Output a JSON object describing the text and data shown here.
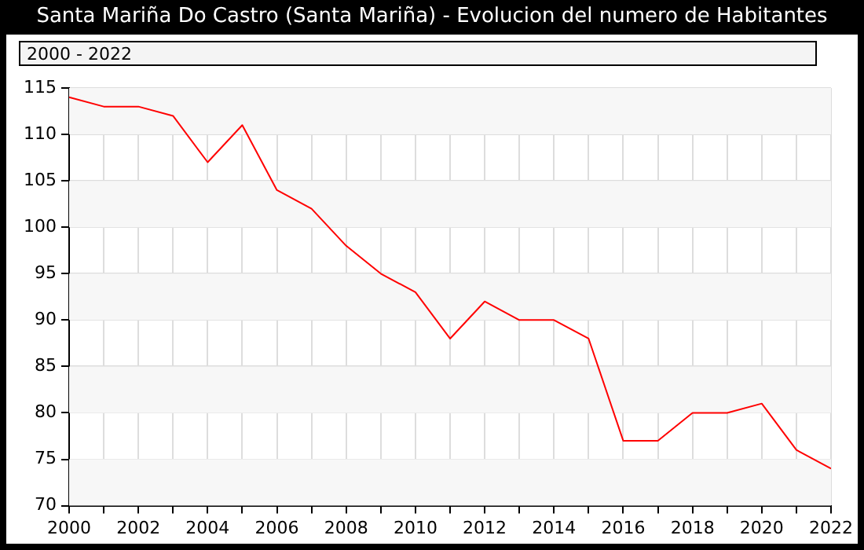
{
  "chart_data": {
    "type": "line",
    "title": "Santa Mariña Do Castro (Santa Mariña) - Evolucion del numero de Habitantes",
    "subtitle": "2000 - 2022",
    "x": [
      2000,
      2001,
      2002,
      2003,
      2004,
      2005,
      2006,
      2007,
      2008,
      2009,
      2010,
      2011,
      2012,
      2013,
      2014,
      2015,
      2016,
      2017,
      2018,
      2019,
      2020,
      2021,
      2022
    ],
    "series": [
      {
        "color": "#ff0000",
        "values": [
          114,
          113,
          113,
          112,
          107,
          111,
          104,
          102,
          98,
          95,
          93,
          88,
          92,
          90,
          90,
          88,
          77,
          77,
          80,
          80,
          81,
          76,
          74
        ]
      }
    ],
    "xlim": [
      2000,
      2022
    ],
    "xticks": [
      2000,
      {
        "value": 2001,
        "label": null
      },
      2002,
      {
        "value": 2003,
        "label": null
      },
      2004,
      {
        "value": 2005,
        "label": null
      },
      2006,
      {
        "value": 2007,
        "label": null
      },
      2008,
      {
        "value": 2009,
        "label": null
      },
      2010,
      {
        "value": 2011,
        "label": null
      },
      2012,
      {
        "value": 2013,
        "label": null
      },
      2014,
      {
        "value": 2015,
        "label": null
      },
      2016,
      {
        "value": 2017,
        "label": null
      },
      2018,
      {
        "value": 2019,
        "label": null
      },
      2020,
      {
        "value": 2021,
        "label": null
      },
      2022
    ],
    "ylim": [
      70,
      115
    ],
    "yticks": [
      70,
      75,
      80,
      85,
      90,
      95,
      100,
      105,
      110,
      115
    ],
    "grid": true,
    "legend": false,
    "marker": "none",
    "line_style": "solid"
  }
}
